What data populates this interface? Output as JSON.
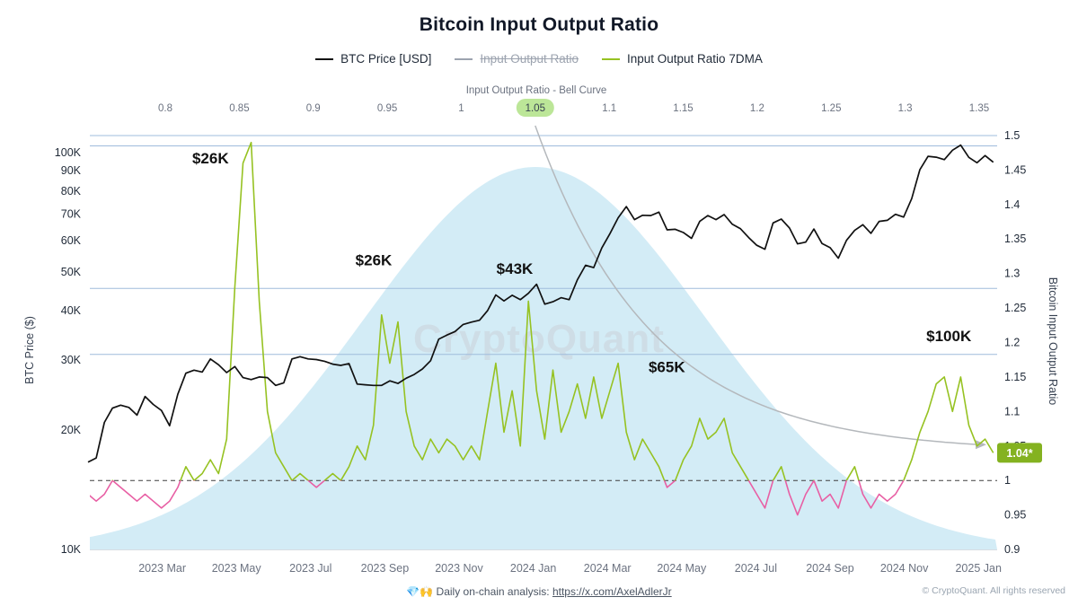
{
  "page": {
    "title": "Bitcoin Input Output Ratio"
  },
  "legend": {
    "items": [
      {
        "label": "BTC Price [USD]",
        "color": "#111111",
        "disabled": false
      },
      {
        "label": "Input Output Ratio",
        "color": "#9ca3af",
        "disabled": true
      },
      {
        "label": "Input Output Ratio 7DMA",
        "color": "#96c222",
        "disabled": false
      }
    ]
  },
  "watermark": "CryptoQuant",
  "footer": {
    "emoji": "💎🙌",
    "text": "Daily on-chain analysis:",
    "link": "https://x.com/AxelAdlerJr",
    "copyright": "© CryptoQuant. All rights reserved"
  },
  "chart_data": {
    "type": "line",
    "title": "Bitcoin Input Output Ratio",
    "x_range": [
      "2023 Jan",
      "2025 Jan"
    ],
    "left_axis": {
      "label": "BTC Price ($)",
      "scale": "log",
      "ticks": [
        {
          "label": "10K",
          "value": 10
        },
        {
          "label": "20K",
          "value": 20
        },
        {
          "label": "30K",
          "value": 30
        },
        {
          "label": "40K",
          "value": 40
        },
        {
          "label": "50K",
          "value": 50
        },
        {
          "label": "60K",
          "value": 60
        },
        {
          "label": "70K",
          "value": 70
        },
        {
          "label": "80K",
          "value": 80
        },
        {
          "label": "90K",
          "value": 90
        },
        {
          "label": "100K",
          "value": 100
        }
      ]
    },
    "right_axis": {
      "label": "Bitcoin Input Output Ratio",
      "min": 0.9,
      "max": 1.5,
      "ticks": [
        {
          "label": "0.9",
          "value": 0.9
        },
        {
          "label": "0.95",
          "value": 0.95
        },
        {
          "label": "1",
          "value": 1.0
        },
        {
          "label": "1.05",
          "value": 1.05
        },
        {
          "label": "1.1",
          "value": 1.1
        },
        {
          "label": "1.15",
          "value": 1.15
        },
        {
          "label": "1.2",
          "value": 1.2
        },
        {
          "label": "1.25",
          "value": 1.25
        },
        {
          "label": "1.3",
          "value": 1.3
        },
        {
          "label": "1.35",
          "value": 1.35
        },
        {
          "label": "1.4",
          "value": 1.4
        },
        {
          "label": "1.45",
          "value": 1.45
        },
        {
          "label": "1.5",
          "value": 1.5
        }
      ]
    },
    "top_axis": {
      "label": "Input Output Ratio - Bell Curve",
      "min": 0.8,
      "max": 1.35,
      "highlight": 1.05,
      "ticks": [
        {
          "label": "0.8",
          "value": 0.8
        },
        {
          "label": "0.85",
          "value": 0.85
        },
        {
          "label": "0.9",
          "value": 0.9
        },
        {
          "label": "0.95",
          "value": 0.95
        },
        {
          "label": "1",
          "value": 1.0
        },
        {
          "label": "1.05",
          "value": 1.05
        },
        {
          "label": "1.1",
          "value": 1.1
        },
        {
          "label": "1.15",
          "value": 1.15
        },
        {
          "label": "1.2",
          "value": 1.2
        },
        {
          "label": "1.25",
          "value": 1.25
        },
        {
          "label": "1.3",
          "value": 1.3
        },
        {
          "label": "1.35",
          "value": 1.35
        }
      ]
    },
    "x_axis": {
      "ticks": [
        {
          "label": "2023 Mar",
          "month": 2
        },
        {
          "label": "2023 May",
          "month": 4
        },
        {
          "label": "2023 Jul",
          "month": 6
        },
        {
          "label": "2023 Sep",
          "month": 8
        },
        {
          "label": "2023 Nov",
          "month": 10
        },
        {
          "label": "2024 Jan",
          "month": 12
        },
        {
          "label": "2024 Mar",
          "month": 14
        },
        {
          "label": "2024 May",
          "month": 16
        },
        {
          "label": "2024 Jul",
          "month": 18
        },
        {
          "label": "2024 Sep",
          "month": 20
        },
        {
          "label": "2024 Nov",
          "month": 22
        },
        {
          "label": "2025 Jan",
          "month": 24
        }
      ]
    },
    "bell_curve": {
      "mean": 1.05,
      "std": 0.115,
      "fill": "#cde9f5"
    },
    "threshold_line": {
      "value": 1.0,
      "style": "dashed",
      "color": "#3f3f3f"
    },
    "price_gridlines": [
      104,
      45.5,
      31
    ],
    "ratio_gridlines": [
      1.5
    ],
    "series": [
      {
        "name": "BTC Price [USD]",
        "axis": "left",
        "color": "#111111",
        "unit": "USD thousands",
        "start_month": 0,
        "end_month": 24.4,
        "values": [
          16.6,
          17.0,
          20.9,
          22.7,
          23.1,
          22.8,
          21.8,
          24.3,
          23.2,
          22.4,
          20.5,
          24.6,
          27.8,
          28.3,
          28.0,
          30.2,
          29.2,
          27.9,
          28.9,
          27.1,
          26.8,
          27.2,
          27.1,
          25.9,
          26.3,
          30.2,
          30.6,
          30.2,
          30.1,
          29.8,
          29.3,
          29.1,
          29.4,
          26.1,
          26.0,
          25.9,
          25.9,
          26.6,
          26.2,
          27.0,
          27.6,
          28.5,
          29.9,
          33.9,
          34.7,
          35.4,
          36.9,
          37.4,
          37.8,
          40.0,
          43.8,
          42.3,
          43.7,
          42.6,
          44.2,
          46.6,
          41.5,
          42.1,
          43.1,
          42.6,
          47.8,
          52.0,
          51.3,
          57.5,
          62.5,
          68.5,
          73.1,
          67.8,
          69.5,
          69.4,
          70.8,
          63.9,
          64.1,
          62.9,
          60.8,
          67.1,
          69.4,
          67.8,
          69.8,
          66.0,
          64.3,
          61.1,
          58.4,
          57.1,
          66.5,
          68.0,
          64.6,
          58.9,
          59.5,
          64.2,
          59.0,
          57.6,
          54.2,
          60.1,
          63.7,
          65.8,
          62.6,
          67.1,
          67.5,
          69.9,
          68.8,
          76.6,
          90.6,
          97.9,
          97.4,
          96.0,
          101.4,
          104.5,
          97.3,
          94.3,
          98.3,
          94.6
        ]
      },
      {
        "name": "Input Output Ratio 7DMA",
        "axis": "right",
        "color_above": "#96c222",
        "color_below": "#e85fa4",
        "threshold": 1.0,
        "start_month": 0,
        "end_month": 24.4,
        "values": [
          0.98,
          0.97,
          0.98,
          1.0,
          0.99,
          0.98,
          0.97,
          0.98,
          0.97,
          0.96,
          0.97,
          0.99,
          1.02,
          1.0,
          1.01,
          1.03,
          1.01,
          1.06,
          1.28,
          1.46,
          1.49,
          1.26,
          1.1,
          1.04,
          1.02,
          1.0,
          1.01,
          1.0,
          0.99,
          1.0,
          1.01,
          1.0,
          1.02,
          1.05,
          1.03,
          1.08,
          1.24,
          1.17,
          1.23,
          1.1,
          1.05,
          1.03,
          1.06,
          1.04,
          1.06,
          1.05,
          1.03,
          1.05,
          1.03,
          1.1,
          1.17,
          1.07,
          1.13,
          1.05,
          1.26,
          1.13,
          1.06,
          1.16,
          1.07,
          1.1,
          1.14,
          1.09,
          1.15,
          1.09,
          1.13,
          1.17,
          1.07,
          1.03,
          1.06,
          1.04,
          1.02,
          0.99,
          1.0,
          1.03,
          1.05,
          1.09,
          1.06,
          1.07,
          1.09,
          1.04,
          1.02,
          1.0,
          0.98,
          0.96,
          1.0,
          1.02,
          0.98,
          0.95,
          0.98,
          1.0,
          0.97,
          0.98,
          0.96,
          1.0,
          1.02,
          0.98,
          0.96,
          0.98,
          0.97,
          0.98,
          1.0,
          1.03,
          1.07,
          1.1,
          1.14,
          1.15,
          1.1,
          1.15,
          1.08,
          1.05,
          1.06,
          1.04
        ]
      }
    ],
    "annotations": [
      {
        "text": "$26K",
        "month": 3.3,
        "price": 94
      },
      {
        "text": "$26K",
        "month": 7.7,
        "price": 52
      },
      {
        "text": "$43K",
        "month": 11.5,
        "price": 49.5
      },
      {
        "text": "$65K",
        "month": 15.6,
        "price": 28
      },
      {
        "text": "$100K",
        "month": 23.2,
        "price": 33.5
      }
    ],
    "current_value": {
      "label": "1.04*",
      "value": 1.04,
      "badge_color": "#84b220"
    }
  }
}
